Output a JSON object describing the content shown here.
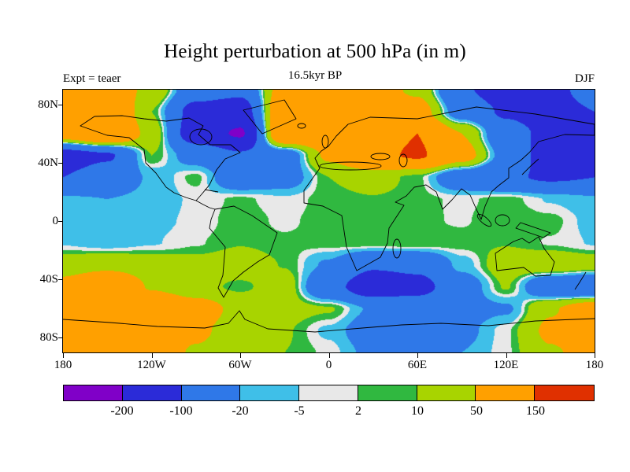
{
  "title": "Height perturbation at 500 hPa (in m)",
  "subtitle": "16.5kyr BP",
  "expt_label": "Expt = teaer",
  "season_label": "DJF",
  "chart_data": {
    "type": "heatmap",
    "variable": "Height perturbation at 500 hPa",
    "units": "m",
    "title": "Height perturbation at 500 hPa (in m)",
    "subtitle": "16.5kyr BP",
    "experiment": "teaer",
    "season": "DJF",
    "lon_range": [
      -180,
      180
    ],
    "lat_range": [
      -90,
      90
    ],
    "lon_ticks": {
      "values": [
        -180,
        -120,
        -60,
        0,
        60,
        120,
        180
      ],
      "labels": [
        "180",
        "120W",
        "60W",
        "0",
        "60E",
        "120E",
        "180"
      ]
    },
    "lat_ticks": {
      "values": [
        80,
        40,
        0,
        -40,
        -80
      ],
      "labels": [
        "80N",
        "40N",
        "0",
        "40S",
        "80S"
      ]
    },
    "levels": [
      -200,
      -100,
      -20,
      -5,
      2,
      10,
      50,
      150
    ],
    "colors": [
      "#8000c8",
      "#2b2bd8",
      "#2f78e8",
      "#3fbfe8",
      "#e8e8e8",
      "#30b840",
      "#a8d400",
      "#ffa000",
      "#e03000"
    ],
    "colorbar_labels": [
      "-200",
      "-100",
      "-20",
      "-5",
      "2",
      "10",
      "50",
      "150"
    ],
    "grid": {
      "lons": [
        -180,
        -150,
        -120,
        -90,
        -60,
        -30,
        0,
        30,
        60,
        90,
        120,
        150,
        180
      ],
      "lats": [
        90,
        75,
        60,
        45,
        30,
        15,
        0,
        -15,
        -30,
        -45,
        -60,
        -75,
        -90
      ],
      "values": [
        [
          60,
          80,
          40,
          -60,
          -80,
          80,
          90,
          80,
          40,
          -90,
          -140,
          -130,
          -60
        ],
        [
          110,
          130,
          10,
          -130,
          -150,
          120,
          100,
          90,
          80,
          -50,
          -110,
          -140,
          -100
        ],
        [
          90,
          150,
          30,
          -150,
          -210,
          130,
          120,
          110,
          150,
          50,
          -70,
          -120,
          -120
        ],
        [
          -140,
          -110,
          10,
          -40,
          -90,
          -50,
          60,
          130,
          160,
          80,
          -40,
          -140,
          -150
        ],
        [
          -100,
          -60,
          -15,
          5,
          -60,
          -40,
          10,
          20,
          5,
          -60,
          -90,
          -110,
          -100
        ],
        [
          -15,
          -20,
          -12,
          -3,
          4,
          -3,
          6,
          9,
          5,
          0,
          6,
          -6,
          -15
        ],
        [
          -10,
          -14,
          -8,
          -3,
          7,
          0,
          7,
          9,
          4,
          1,
          9,
          5,
          -10
        ],
        [
          -6,
          -12,
          -6,
          1,
          9,
          4,
          6,
          9,
          9,
          6,
          9,
          1,
          -6
        ],
        [
          25,
          35,
          25,
          18,
          25,
          9,
          -25,
          -90,
          -80,
          -12,
          25,
          35,
          25
        ],
        [
          70,
          120,
          45,
          18,
          6,
          25,
          -70,
          -160,
          -130,
          -45,
          12,
          -70,
          -90
        ],
        [
          130,
          150,
          120,
          80,
          35,
          20,
          12,
          -25,
          -45,
          -35,
          -25,
          45,
          90
        ],
        [
          110,
          130,
          100,
          60,
          25,
          12,
          -8,
          -45,
          -65,
          -30,
          0,
          60,
          90
        ],
        [
          90,
          110,
          80,
          45,
          20,
          10,
          0,
          -30,
          -45,
          -20,
          0,
          45,
          70
        ]
      ]
    }
  }
}
